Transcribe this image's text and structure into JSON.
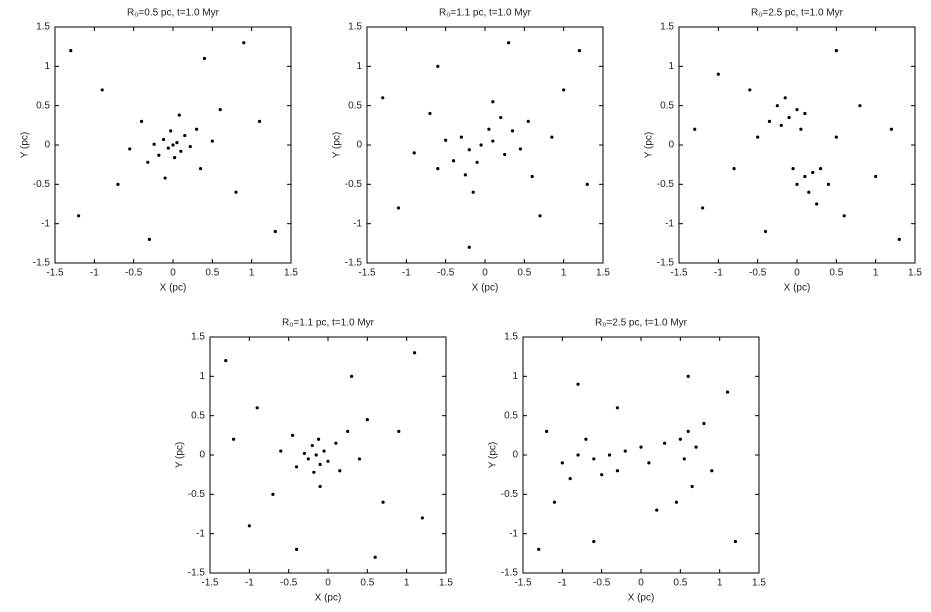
{
  "chart_data": [
    {
      "type": "scatter",
      "title": "R₀=0.5 pc, t=1.0 Myr",
      "xlabel": "X (pc)",
      "ylabel": "Y (pc)",
      "color": "#000000",
      "xlim": [
        -1.5,
        1.5
      ],
      "ylim": [
        -1.5,
        1.5
      ],
      "xticks": [
        -1.5,
        -1,
        -0.5,
        0,
        0.5,
        1,
        1.5
      ],
      "yticks": [
        -1.5,
        -1,
        -0.5,
        0,
        0.5,
        1,
        1.5
      ],
      "x": [
        0,
        0.05,
        -0.06,
        0.1,
        -0.12,
        0.15,
        -0.18,
        0.02,
        -0.03,
        0.22,
        -0.24,
        0.3,
        -0.32,
        0.35,
        -0.4,
        0.08,
        -0.1,
        0.5,
        -0.55,
        0.6,
        -0.7,
        0.8,
        -0.9,
        1.1,
        -1.2,
        0.4,
        -0.3,
        1.3,
        -1.3,
        0.9
      ],
      "y": [
        0,
        0.03,
        -0.04,
        -0.08,
        0.07,
        0.12,
        -0.13,
        -0.16,
        0.18,
        -0.02,
        0.01,
        0.2,
        -0.22,
        -0.3,
        0.3,
        0.38,
        -0.42,
        0.05,
        -0.05,
        0.45,
        -0.5,
        -0.6,
        0.7,
        0.3,
        -0.9,
        1.1,
        -1.2,
        -1.1,
        1.2,
        1.3
      ]
    },
    {
      "type": "scatter",
      "title": "R₀=1.1 pc, t=1.0 Myr",
      "xlabel": "X (pc)",
      "ylabel": "Y (pc)",
      "color": "#000000",
      "xlim": [
        -1.5,
        1.5
      ],
      "ylim": [
        -1.5,
        1.5
      ],
      "xticks": [
        -1.5,
        -1,
        -0.5,
        0,
        0.5,
        1,
        1.5
      ],
      "yticks": [
        -1.5,
        -1,
        -0.5,
        0,
        0.5,
        1,
        1.5
      ],
      "x": [
        -0.05,
        0.1,
        -0.2,
        0.25,
        -0.3,
        0.05,
        -0.1,
        0.35,
        -0.4,
        0.45,
        -0.5,
        0.2,
        -0.25,
        0.55,
        -0.6,
        0.6,
        -0.7,
        0.1,
        -0.15,
        0.85,
        -0.9,
        1,
        -1.1,
        0.7,
        -0.6,
        1.3,
        -1.3,
        0.3,
        -0.2,
        1.2
      ],
      "y": [
        0,
        0.05,
        -0.06,
        -0.12,
        0.1,
        0.2,
        -0.22,
        0.18,
        -0.2,
        -0.05,
        0.06,
        0.35,
        -0.38,
        0.3,
        -0.3,
        -0.4,
        0.4,
        0.55,
        -0.6,
        0.1,
        -0.1,
        0.7,
        -0.8,
        -0.9,
        1,
        -0.5,
        0.6,
        1.3,
        -1.3,
        1.2
      ]
    },
    {
      "type": "scatter",
      "title": "R₀=2.5 pc, t=1.0 Myr",
      "xlabel": "X (pc)",
      "ylabel": "Y (pc)",
      "color": "#000000",
      "xlim": [
        -1.5,
        1.5
      ],
      "ylim": [
        -1.5,
        1.5
      ],
      "xticks": [
        -1.5,
        -1,
        -0.5,
        0,
        0.5,
        1,
        1.5
      ],
      "yticks": [
        -1.5,
        -1,
        -0.5,
        0,
        0.5,
        1,
        1.5
      ],
      "x": [
        -0.1,
        -0.2,
        0,
        -0.25,
        0.05,
        -0.35,
        -0.15,
        0.1,
        0.1,
        0.2,
        0,
        0.15,
        0.3,
        -0.05,
        0.25,
        0.4,
        -0.5,
        0.5,
        -0.6,
        0.6,
        -0.8,
        0.8,
        -1,
        1,
        -1.2,
        1.2,
        -0.4,
        0.5,
        -1.3,
        1.3
      ],
      "y": [
        0.35,
        0.25,
        0.45,
        0.5,
        0.2,
        0.3,
        0.6,
        0.4,
        -0.4,
        -0.35,
        -0.5,
        -0.6,
        -0.3,
        -0.3,
        -0.75,
        -0.5,
        0.1,
        0.1,
        0.7,
        -0.9,
        -0.3,
        0.5,
        0.9,
        -0.4,
        -0.8,
        0.2,
        -1.1,
        1.2,
        0.2,
        -1.2
      ]
    },
    {
      "type": "scatter",
      "title": "R₀=1.1 pc, t=1.0 Myr",
      "xlabel": "X (pc)",
      "ylabel": "Y (pc)",
      "color": "#000000",
      "xlim": [
        -1.5,
        1.5
      ],
      "ylim": [
        -1.5,
        1.5
      ],
      "xticks": [
        -1.5,
        -1,
        -0.5,
        0,
        0.5,
        1,
        1.5
      ],
      "yticks": [
        -1.5,
        -1,
        -0.5,
        0,
        0.5,
        1,
        1.5
      ],
      "x": [
        -0.15,
        -0.05,
        -0.25,
        -0.1,
        -0.2,
        0,
        -0.3,
        -0.12,
        -0.18,
        0.1,
        -0.4,
        0.15,
        -0.45,
        0.25,
        -0.1,
        0.4,
        -0.6,
        0.5,
        -0.7,
        0.7,
        -0.9,
        0.9,
        -1,
        0.3,
        -0.4,
        1.2,
        -1.3,
        1.1,
        -1.2,
        0.6
      ],
      "y": [
        0,
        0.05,
        -0.05,
        -0.12,
        0.12,
        -0.08,
        0.02,
        0.2,
        -0.22,
        0.15,
        -0.15,
        -0.2,
        0.25,
        0.3,
        -0.4,
        -0.05,
        0.05,
        0.45,
        -0.5,
        -0.6,
        0.6,
        0.3,
        -0.9,
        1,
        -1.2,
        -0.8,
        1.2,
        1.3,
        0.2,
        -1.3
      ]
    },
    {
      "type": "scatter",
      "title": "R₀=2.5 pc, t=1.0 Myr",
      "xlabel": "X (pc)",
      "ylabel": "Y (pc)",
      "color": "#000000",
      "xlim": [
        -1.5,
        1.5
      ],
      "ylim": [
        -1.5,
        1.5
      ],
      "xticks": [
        -1.5,
        -1,
        -0.5,
        0,
        0.5,
        1,
        1.5
      ],
      "yticks": [
        -1.5,
        -1,
        -0.5,
        0,
        0.5,
        1,
        1.5
      ],
      "x": [
        -1,
        -0.8,
        -0.9,
        -0.6,
        -0.7,
        -0.4,
        -0.5,
        -0.2,
        -0.3,
        0,
        0.1,
        0.3,
        0.5,
        0.6,
        0.55,
        0.7,
        0.65,
        0.8,
        0.45,
        -1.2,
        -1.1,
        0.9,
        -0.3,
        0.2,
        -0.8,
        0.6,
        -0.6,
        1.1,
        -1.3,
        1.2
      ],
      "y": [
        -0.1,
        0,
        -0.3,
        -0.05,
        0.2,
        0,
        -0.25,
        0.05,
        -0.2,
        0.1,
        -0.1,
        0.15,
        0.2,
        0.3,
        -0.05,
        0.1,
        -0.4,
        0.4,
        -0.6,
        0.3,
        -0.6,
        -0.2,
        0.6,
        -0.7,
        0.9,
        1,
        -1.1,
        0.8,
        -1.2,
        -1.1
      ]
    }
  ]
}
